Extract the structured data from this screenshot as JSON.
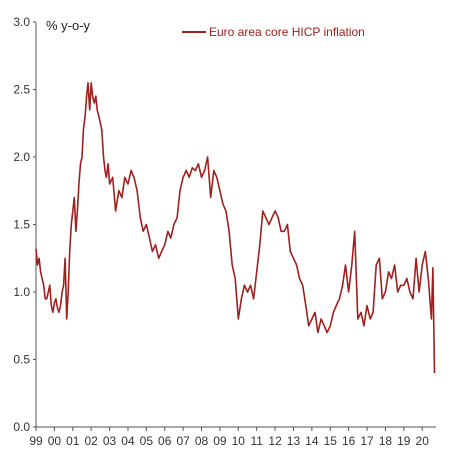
{
  "chart_data": {
    "type": "line",
    "title": "",
    "ylabel": "% y-o-y",
    "xlabel": "",
    "ylim": [
      0,
      3.0
    ],
    "yticks": [
      "0.0",
      "0.5",
      "1.0",
      "1.5",
      "2.0",
      "2.5",
      "3.0"
    ],
    "x_categories": [
      "99",
      "00",
      "01",
      "02",
      "03",
      "04",
      "05",
      "06",
      "07",
      "08",
      "09",
      "10",
      "11",
      "12",
      "13",
      "14",
      "15",
      "16",
      "17",
      "18",
      "19",
      "20"
    ],
    "xlim": [
      1999.0,
      2020.75
    ],
    "grid": false,
    "legend_position": "top-right",
    "series": [
      {
        "name": "Euro area core HICP inflation",
        "color": "#a0201e",
        "x": [
          1999.0,
          1999.08,
          1999.17,
          1999.25,
          1999.33,
          1999.42,
          1999.5,
          1999.58,
          1999.67,
          1999.75,
          1999.83,
          1999.92,
          2000.0,
          2000.08,
          2000.17,
          2000.25,
          2000.33,
          2000.42,
          2000.5,
          2000.58,
          2000.67,
          2000.75,
          2000.83,
          2000.92,
          2001.0,
          2001.08,
          2001.17,
          2001.25,
          2001.33,
          2001.42,
          2001.5,
          2001.58,
          2001.67,
          2001.75,
          2001.83,
          2001.92,
          2002.0,
          2002.08,
          2002.17,
          2002.25,
          2002.33,
          2002.42,
          2002.5,
          2002.58,
          2002.67,
          2002.75,
          2002.83,
          2002.92,
          2003.0,
          2003.17,
          2003.33,
          2003.5,
          2003.67,
          2003.83,
          2004.0,
          2004.17,
          2004.33,
          2004.5,
          2004.67,
          2004.83,
          2005.0,
          2005.17,
          2005.33,
          2005.5,
          2005.67,
          2005.83,
          2006.0,
          2006.17,
          2006.33,
          2006.5,
          2006.67,
          2006.83,
          2007.0,
          2007.17,
          2007.33,
          2007.5,
          2007.67,
          2007.83,
          2008.0,
          2008.17,
          2008.33,
          2008.5,
          2008.67,
          2008.83,
          2009.0,
          2009.17,
          2009.33,
          2009.5,
          2009.67,
          2009.83,
          2010.0,
          2010.17,
          2010.33,
          2010.5,
          2010.67,
          2010.83,
          2011.0,
          2011.17,
          2011.33,
          2011.5,
          2011.67,
          2011.83,
          2012.0,
          2012.17,
          2012.33,
          2012.5,
          2012.67,
          2012.83,
          2013.0,
          2013.17,
          2013.33,
          2013.5,
          2013.67,
          2013.83,
          2014.0,
          2014.17,
          2014.33,
          2014.5,
          2014.67,
          2014.83,
          2015.0,
          2015.17,
          2015.33,
          2015.5,
          2015.67,
          2015.83,
          2016.0,
          2016.17,
          2016.33,
          2016.5,
          2016.67,
          2016.83,
          2017.0,
          2017.17,
          2017.33,
          2017.5,
          2017.67,
          2017.83,
          2018.0,
          2018.17,
          2018.33,
          2018.5,
          2018.67,
          2018.83,
          2019.0,
          2019.17,
          2019.33,
          2019.5,
          2019.67,
          2019.83,
          2020.0,
          2020.17,
          2020.33,
          2020.5,
          2020.58,
          2020.67
        ],
        "y": [
          1.32,
          1.2,
          1.25,
          1.15,
          1.1,
          1.05,
          0.95,
          0.95,
          1.0,
          1.05,
          0.9,
          0.85,
          0.92,
          0.95,
          0.88,
          0.85,
          0.9,
          1.0,
          1.05,
          1.25,
          0.8,
          1.0,
          1.3,
          1.5,
          1.6,
          1.7,
          1.45,
          1.6,
          1.8,
          1.95,
          2.0,
          2.2,
          2.3,
          2.45,
          2.55,
          2.35,
          2.55,
          2.45,
          2.4,
          2.45,
          2.35,
          2.3,
          2.25,
          2.2,
          2.0,
          1.9,
          1.85,
          1.95,
          1.8,
          1.85,
          1.6,
          1.75,
          1.7,
          1.85,
          1.8,
          1.9,
          1.85,
          1.75,
          1.55,
          1.45,
          1.5,
          1.4,
          1.3,
          1.35,
          1.25,
          1.3,
          1.35,
          1.45,
          1.4,
          1.5,
          1.55,
          1.75,
          1.85,
          1.9,
          1.85,
          1.92,
          1.9,
          1.95,
          1.85,
          1.9,
          2.0,
          1.7,
          1.9,
          1.85,
          1.75,
          1.65,
          1.6,
          1.45,
          1.2,
          1.1,
          0.8,
          0.95,
          1.05,
          1.0,
          1.05,
          0.95,
          1.15,
          1.35,
          1.6,
          1.55,
          1.5,
          1.55,
          1.6,
          1.55,
          1.45,
          1.45,
          1.5,
          1.3,
          1.25,
          1.2,
          1.1,
          1.05,
          0.9,
          0.75,
          0.8,
          0.85,
          0.7,
          0.8,
          0.75,
          0.7,
          0.75,
          0.85,
          0.9,
          0.95,
          1.05,
          1.2,
          1.0,
          1.2,
          1.45,
          0.8,
          0.85,
          0.75,
          0.9,
          0.8,
          0.85,
          1.2,
          1.25,
          0.95,
          1.0,
          1.15,
          1.1,
          1.2,
          1.0,
          1.05,
          1.05,
          1.1,
          1.0,
          0.95,
          1.25,
          1.0,
          1.2,
          1.3,
          1.1,
          0.8,
          1.18,
          0.4
        ]
      }
    ]
  }
}
